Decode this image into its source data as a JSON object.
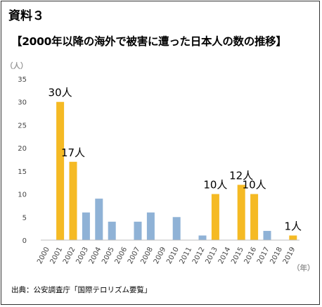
{
  "doc_label": "資料３",
  "source_note": "出典：公安調査庁「国際テロリズム要覧」",
  "colors": {
    "highlight": "#F5BA24",
    "normal": "#8FB2D6",
    "grid": "#D9D9D9",
    "axis": "#BFBFBF"
  },
  "chart_data": {
    "type": "bar",
    "title": "【2000年以降の海外で被害に遭った日本人の数の推移】",
    "ylabel_unit": "（人）",
    "xlabel_unit": "（年）",
    "ylim": [
      0,
      35
    ],
    "yticks": [
      0,
      5,
      10,
      15,
      20,
      25,
      30,
      35
    ],
    "grid": false,
    "categories": [
      "2000",
      "2001",
      "2002",
      "2003",
      "2004",
      "2005",
      "2006",
      "2007",
      "2008",
      "2009",
      "2010",
      "2011",
      "2012",
      "2013",
      "2014",
      "2015",
      "2016",
      "2017",
      "2018",
      "2019"
    ],
    "values": [
      0,
      30,
      17,
      6,
      9,
      4,
      0,
      4,
      6,
      0,
      5,
      0,
      1,
      10,
      0,
      12,
      10,
      2,
      0,
      1
    ],
    "highlighted": [
      "2001",
      "2002",
      "2013",
      "2015",
      "2016",
      "2019"
    ],
    "data_labels": [
      {
        "category": "2001",
        "text": "30人"
      },
      {
        "category": "2002",
        "text": "17人"
      },
      {
        "category": "2013",
        "text": "10人"
      },
      {
        "category": "2015",
        "text": "12人"
      },
      {
        "category": "2016",
        "text": "10人"
      },
      {
        "category": "2019",
        "text": "1人"
      }
    ]
  }
}
